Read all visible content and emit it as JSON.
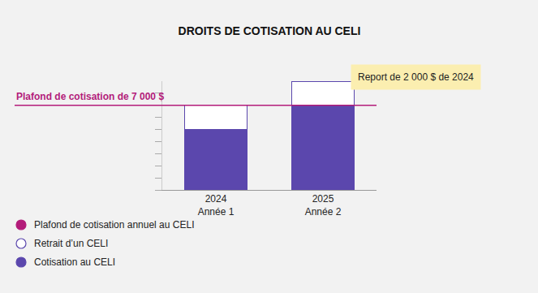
{
  "chart_data": {
    "type": "bar",
    "title": "DROITS DE COTISATION AU CELI",
    "categories": [
      "2024\nAnnée 1",
      "2025\nAnnée 2"
    ],
    "series": [
      {
        "name": "Cotisation au CELI",
        "color": "#5b47ad",
        "values": [
          5000,
          7000
        ]
      },
      {
        "name": "Retrait d’un CELI",
        "color": "#ffffff",
        "values": [
          2000,
          2000
        ]
      },
      {
        "name": "Plafond de cotisation annuel au CELI",
        "type": "line",
        "color": "#b31c7a",
        "values": [
          7000,
          7000
        ]
      }
    ],
    "annotations": [
      "Plafond de cotisation de 7 000 $",
      "Report de 2 000 $ de 2024"
    ],
    "ylim": [
      0,
      9000
    ],
    "yticks": [
      0,
      1000,
      2000,
      3000,
      4000,
      5000,
      6000,
      7000,
      8000
    ],
    "stacked": true,
    "grid": false,
    "tick_labels": "x",
    "legend": "bottom left"
  }
}
